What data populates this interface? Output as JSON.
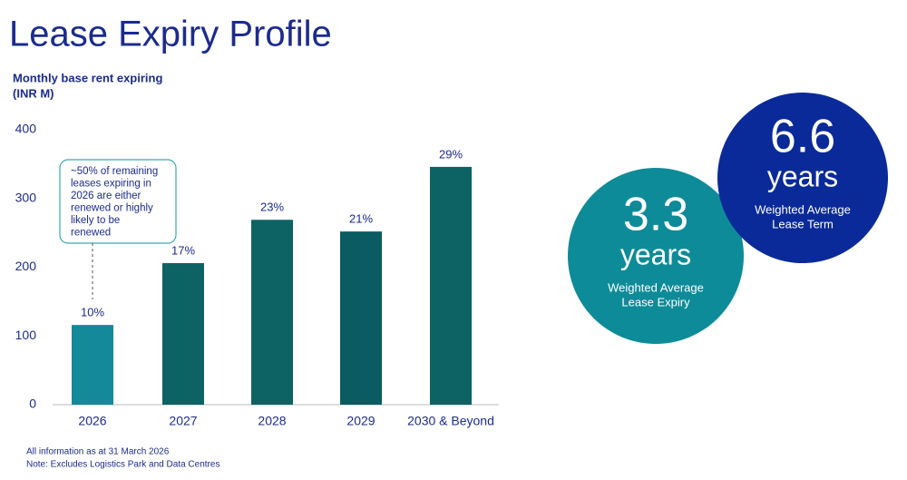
{
  "chart_data": {
    "type": "bar",
    "title": "Lease Expiry Profile",
    "subtitle": [
      "Monthly base rent expiring",
      "(INR M)"
    ],
    "categories": [
      "2026",
      "2027",
      "2028",
      "2029",
      "2030 & Beyond"
    ],
    "values": [
      116,
      206,
      269,
      252,
      346
    ],
    "data_labels": [
      "10%",
      "17%",
      "23%",
      "21%",
      "29%"
    ],
    "colors": [
      "#13899a",
      "#0d6264",
      "#0d6264",
      "#0b5c62",
      "#0d6264"
    ],
    "ylim": [
      0,
      400
    ],
    "yticks": [
      0,
      100,
      200,
      300,
      400
    ],
    "grid": false,
    "annotation": [
      "~50% of remaining",
      "leases expiring in",
      "2026 are either",
      "renewed or highly",
      "likely to be",
      "renewed"
    ]
  },
  "kpis": [
    {
      "value": "3.3",
      "unit": "years",
      "label": [
        "Weighted Average",
        "Lease Expiry"
      ],
      "color": "#0e8b98"
    },
    {
      "value": "6.6",
      "unit": "years",
      "label": [
        "Weighted Average",
        "Lease Term"
      ],
      "color": "#0b2a99"
    }
  ],
  "footnotes": [
    "All information as at 31 March 2026",
    "Note: Excludes Logistics Park and Data Centres"
  ]
}
